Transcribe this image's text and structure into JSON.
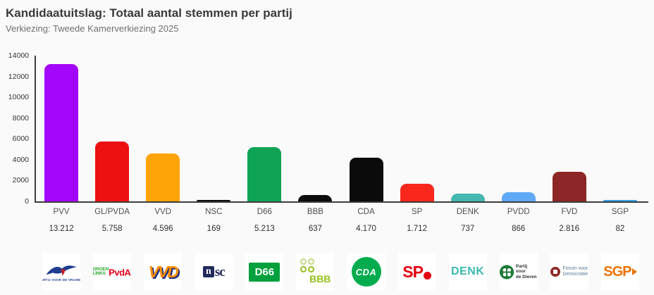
{
  "page": {
    "title": "Kandidaatuitslag: Totaal aantal stemmen per partij",
    "subtitle": "Verkiezing: Tweede Kamerverkiezing 2025"
  },
  "chart_data": {
    "type": "bar",
    "title": "Kandidaatuitslag: Totaal aantal stemmen per partij",
    "subtitle": "Verkiezing: Tweede Kamerverkiezing 2025",
    "xlabel": "",
    "ylabel": "",
    "ylim": [
      0,
      14000
    ],
    "yticks": [
      0,
      2000,
      4000,
      6000,
      8000,
      10000,
      12000,
      14000
    ],
    "grid": false,
    "legend_position": "none",
    "categories": [
      "PVV",
      "GL/PVDA",
      "VVD",
      "NSC",
      "D66",
      "BBB",
      "CDA",
      "SP",
      "DENK",
      "PVDD",
      "FVD",
      "SGP"
    ],
    "values": [
      13212,
      5758,
      4596,
      169,
      5213,
      637,
      4170,
      1712,
      737,
      866,
      2816,
      82
    ],
    "value_labels": [
      "13.212",
      "5.758",
      "4.596",
      "169",
      "5.213",
      "637",
      "4.170",
      "1.712",
      "737",
      "866",
      "2.816",
      "82"
    ],
    "bar_colors": [
      "#A405FB",
      "#ED1111",
      "#FFA408",
      "#0B0B0B",
      "#0FA455",
      "#0B0B0B",
      "#0B0B0B",
      "#F9271C",
      "#46B8B0",
      "#60A9F6",
      "#8D2626",
      "#37A4E8"
    ],
    "axis_color": "#3d3d3d",
    "tick_label_color": "#333333",
    "category_label_color": "#4f4f4f",
    "value_label_color": "#2f2f2f"
  },
  "logos": [
    {
      "party": "PVV",
      "kind": "pvv",
      "caption": "PARTIJ VOOR DE VRIJHEID",
      "colors": {
        "navy": "#1D3E8F",
        "red": "#C41E2A"
      }
    },
    {
      "party": "GL/PVDA",
      "kind": "glpvda",
      "line1": "GROEN",
      "line2": "LINKS",
      "text2": "PvdA",
      "colors": {
        "green": "#2FA832",
        "red": "#E2001A"
      }
    },
    {
      "party": "VVD",
      "kind": "vvd",
      "text": "VVD",
      "colors": {
        "orange": "#FF8C00",
        "navy": "#20307E"
      }
    },
    {
      "party": "NSC",
      "kind": "nsc",
      "text1": "n",
      "text2": "sc",
      "colors": {
        "navy": "#232A5C"
      }
    },
    {
      "party": "D66",
      "kind": "d66",
      "text": "D66",
      "colors": {
        "green": "#00A03C"
      }
    },
    {
      "party": "BBB",
      "kind": "bbb",
      "text": "BBB",
      "colors": {
        "lime": "#95C11F",
        "lightlime": "#C4D98A"
      }
    },
    {
      "party": "CDA",
      "kind": "cda",
      "text": "CDA",
      "colors": {
        "green": "#00AC4E"
      }
    },
    {
      "party": "SP",
      "kind": "sp",
      "text": "SP",
      "colors": {
        "red": "#E3000F"
      }
    },
    {
      "party": "DENK",
      "kind": "denk",
      "text": "DENK",
      "colors": {
        "teal": "#3CB8B0"
      }
    },
    {
      "party": "PVDD",
      "kind": "pvdd",
      "line1": "Partij voor",
      "line2": "de Dieren",
      "colors": {
        "green": "#1D7A36",
        "text": "#333333"
      }
    },
    {
      "party": "FVD",
      "kind": "fvd",
      "line1": "Forum voor",
      "line2": "Democratie",
      "colors": {
        "maroon": "#8E2A2A",
        "text": "#5E7D96"
      }
    },
    {
      "party": "SGP",
      "kind": "sgp",
      "text": "SGP",
      "colors": {
        "orange": "#EE7203"
      }
    }
  ]
}
